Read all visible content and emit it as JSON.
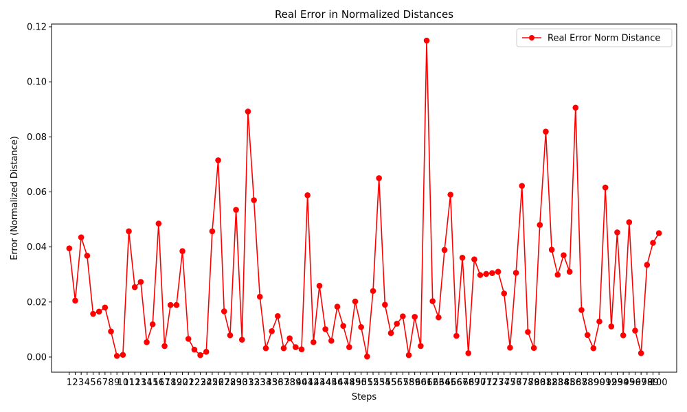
{
  "chart_data": {
    "type": "line",
    "title": "Real Error in Normalized Distances",
    "xlabel": "Steps",
    "ylabel": "Error (Normalized Distance)",
    "ylim": [
      -0.0055,
      0.121
    ],
    "yticks": [
      0.0,
      0.02,
      0.04,
      0.06,
      0.08,
      0.1,
      0.12
    ],
    "ytick_labels": [
      "0.00",
      "0.02",
      "0.04",
      "0.06",
      "0.08",
      "0.10",
      "0.12"
    ],
    "xlim": [
      -1.98,
      102.98
    ],
    "x_tick_labels": [
      "1",
      "2",
      "3",
      "4",
      "5",
      "6",
      "7",
      "8",
      "9",
      "10",
      "11",
      "12",
      "13",
      "14",
      "15",
      "16",
      "17",
      "18",
      "19",
      "20",
      "21",
      "22",
      "23",
      "24",
      "25",
      "26",
      "27",
      "28",
      "29",
      "30",
      "31",
      "32",
      "33",
      "34",
      "35",
      "36",
      "37",
      "38",
      "39",
      "40",
      "41",
      "42",
      "43",
      "44",
      "45",
      "46",
      "47",
      "48",
      "49",
      "50",
      "51",
      "52",
      "53",
      "54",
      "55",
      "56",
      "57",
      "58",
      "59",
      "60",
      "61",
      "62",
      "63",
      "64",
      "65",
      "66",
      "67",
      "68",
      "69",
      "70",
      "71",
      "72",
      "73",
      "74",
      "75",
      "76",
      "77",
      "78",
      "79",
      "80",
      "81",
      "82",
      "83",
      "84",
      "85",
      "86",
      "87",
      "88",
      "89",
      "90",
      "91",
      "92",
      "93",
      "94",
      "95",
      "96",
      "97",
      "98",
      "99",
      "100"
    ],
    "grid": false,
    "legend_position": "top-right",
    "series": [
      {
        "name": "Real Error Norm Distance",
        "color": "#ff0000",
        "marker": "circle",
        "x": [
          1,
          2,
          3,
          4,
          5,
          6,
          7,
          8,
          9,
          10,
          11,
          12,
          13,
          14,
          15,
          16,
          17,
          18,
          19,
          20,
          21,
          22,
          23,
          24,
          25,
          26,
          27,
          28,
          29,
          30,
          31,
          32,
          33,
          34,
          35,
          36,
          37,
          38,
          39,
          40,
          41,
          42,
          43,
          44,
          45,
          46,
          47,
          48,
          49,
          50,
          51,
          52,
          53,
          54,
          55,
          56,
          57,
          58,
          59,
          60,
          61,
          62,
          63,
          64,
          65,
          66,
          67,
          68,
          69,
          70,
          71,
          72,
          73,
          74,
          75,
          76,
          77,
          78,
          79,
          80,
          81,
          82,
          83,
          84,
          85,
          86,
          87,
          88,
          89,
          90,
          91,
          92,
          93,
          94,
          95,
          96,
          97,
          98,
          99,
          100
        ],
        "values": [
          0.0395,
          0.0205,
          0.0435,
          0.0368,
          0.0157,
          0.0165,
          0.018,
          0.0093,
          0.0004,
          0.0008,
          0.0457,
          0.0254,
          0.0273,
          0.0054,
          0.0119,
          0.0485,
          0.004,
          0.0189,
          0.0189,
          0.0385,
          0.0066,
          0.0027,
          0.0007,
          0.0019,
          0.0457,
          0.0715,
          0.0166,
          0.0079,
          0.0535,
          0.0063,
          0.0892,
          0.057,
          0.0219,
          0.0032,
          0.0094,
          0.0149,
          0.0032,
          0.0068,
          0.0036,
          0.0028,
          0.0588,
          0.0054,
          0.0259,
          0.0101,
          0.0059,
          0.0183,
          0.0113,
          0.0036,
          0.0202,
          0.0109,
          0.0002,
          0.024,
          0.065,
          0.019,
          0.0087,
          0.0121,
          0.0148,
          0.0007,
          0.0146,
          0.004,
          0.115,
          0.0203,
          0.0144,
          0.0389,
          0.059,
          0.0077,
          0.0361,
          0.0014,
          0.0355,
          0.0298,
          0.0302,
          0.0305,
          0.031,
          0.0231,
          0.0034,
          0.0306,
          0.0622,
          0.0091,
          0.0033,
          0.048,
          0.0819,
          0.039,
          0.0299,
          0.037,
          0.031,
          0.0906,
          0.0171,
          0.008,
          0.0032,
          0.0129,
          0.0616,
          0.0111,
          0.0453,
          0.0079,
          0.049,
          0.0096,
          0.0014,
          0.0335,
          0.0415,
          0.045
        ]
      }
    ]
  }
}
